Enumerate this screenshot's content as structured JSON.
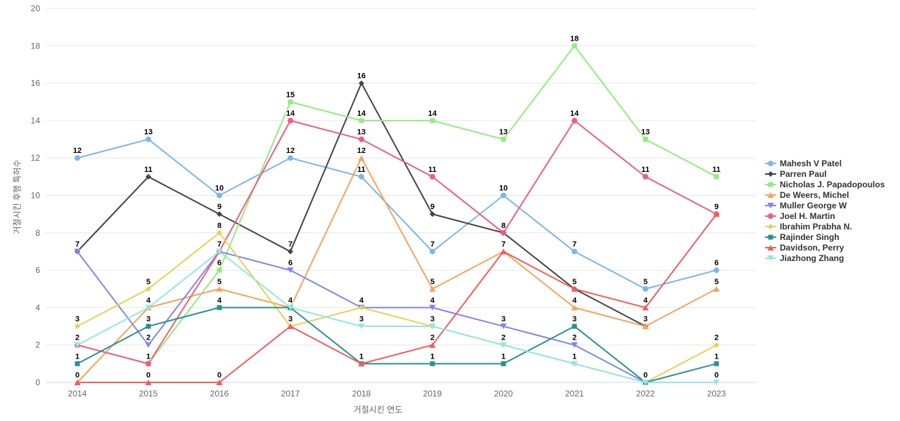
{
  "chart_data": {
    "type": "line",
    "title": "",
    "xlabel": "거절시킨 연도",
    "ylabel": "거절시킨 후행 특허수",
    "x": [
      "2014",
      "2015",
      "2016",
      "2017",
      "2018",
      "2019",
      "2020",
      "2021",
      "2022",
      "2023"
    ],
    "ylim": [
      0,
      20
    ],
    "yticks": [
      0,
      2,
      4,
      6,
      8,
      10,
      12,
      14,
      16,
      18,
      20
    ],
    "grid": true,
    "legend_position": "right",
    "background_color": "#ffffff",
    "gridline_color": "#e6e6e6",
    "axisline_color": "#ccd6eb",
    "tick_label_color": "#666666",
    "legend_text_color": "#333333",
    "series": [
      {
        "name": "Mahesh V Patel",
        "color": "#7cb5ec",
        "marker": "circle",
        "values": [
          12,
          13,
          10,
          12,
          11,
          7,
          10,
          7,
          5,
          6
        ]
      },
      {
        "name": "Parren Paul",
        "color": "#434348",
        "marker": "diamond",
        "values": [
          7,
          11,
          9,
          7,
          16,
          9,
          8,
          5,
          3,
          null
        ]
      },
      {
        "name": "Nicholas J. Papadopoulos",
        "color": "#90ed7d",
        "marker": "square",
        "values": [
          2,
          1,
          6,
          15,
          14,
          14,
          13,
          18,
          13,
          11
        ]
      },
      {
        "name": "De Weers, Michel",
        "color": "#f7a35c",
        "marker": "triangle",
        "values": [
          0,
          4,
          5,
          4,
          12,
          5,
          7,
          4,
          3,
          5
        ]
      },
      {
        "name": "Muller George W",
        "color": "#8085e9",
        "marker": "triangle-down",
        "values": [
          7,
          2,
          7,
          6,
          4,
          4,
          3,
          2,
          0,
          null
        ]
      },
      {
        "name": "Joel H. Martin",
        "color": "#f15c80",
        "marker": "circle",
        "values": [
          2,
          1,
          7,
          14,
          13,
          11,
          8,
          14,
          11,
          9
        ]
      },
      {
        "name": "Ibrahim Prabha N.",
        "color": "#e4d354",
        "marker": "diamond",
        "values": [
          3,
          5,
          8,
          3,
          4,
          3,
          2,
          1,
          0,
          2
        ]
      },
      {
        "name": "Rajinder Singh",
        "color": "#2b908f",
        "marker": "square",
        "values": [
          1,
          3,
          4,
          4,
          1,
          1,
          1,
          3,
          0,
          1
        ]
      },
      {
        "name": "Davidson, Perry",
        "color": "#f45b5b",
        "marker": "triangle",
        "values": [
          0,
          0,
          0,
          3,
          1,
          2,
          7,
          5,
          4,
          9
        ]
      },
      {
        "name": "Jiazhong Zhang",
        "color": "#91e8e1",
        "marker": "triangle-down",
        "values": [
          2,
          4,
          7,
          4,
          3,
          3,
          2,
          1,
          0,
          0
        ]
      }
    ]
  }
}
